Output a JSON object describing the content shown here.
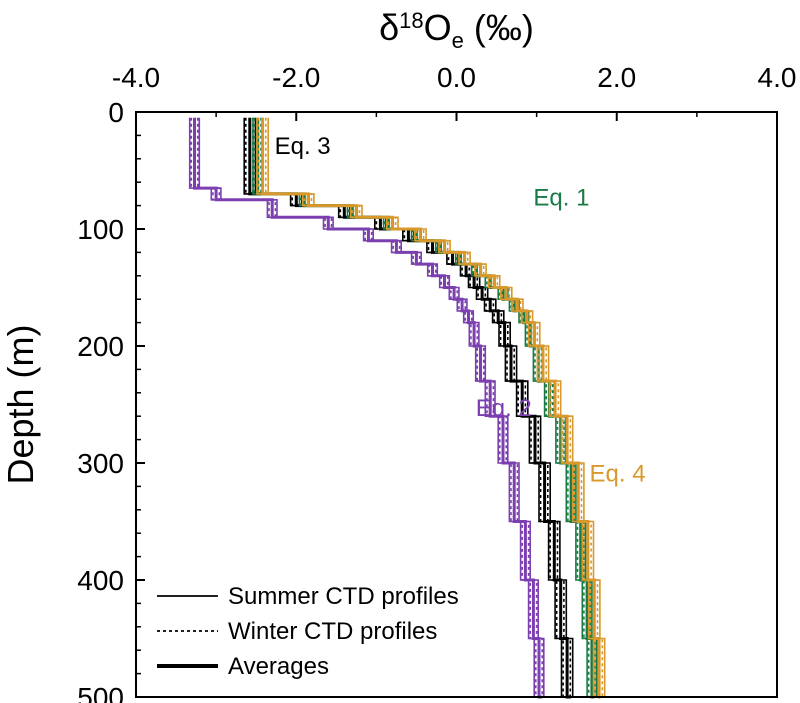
{
  "chart_data": {
    "type": "line",
    "title": "",
    "xlabel": {
      "base": "δ",
      "sup": "18",
      "main": "O",
      "sub": "e",
      "unit": " (‰)"
    },
    "ylabel": "Depth (m)",
    "xlim": [
      -4.0,
      4.0
    ],
    "ylim": [
      0,
      500
    ],
    "y_inverted": true,
    "x_axis_position": "top",
    "x_ticks": [
      -4.0,
      -2.0,
      0.0,
      2.0,
      4.0
    ],
    "x_tick_labels": [
      "-4.0",
      "-2.0",
      "0.0",
      "2.0",
      "4.0"
    ],
    "y_ticks": [
      0,
      100,
      200,
      300,
      400,
      500
    ],
    "y_tick_labels": [
      "0",
      "100",
      "200",
      "300",
      "400",
      "500"
    ],
    "grid": false,
    "colors": {
      "eq1": "#1a7a45",
      "eq2": "#7b3fb0",
      "eq3": "#000000",
      "eq4": "#d9982b"
    },
    "series": [
      {
        "name": "Eq. 3",
        "color_key": "eq3",
        "depth": [
          5,
          55,
          70,
          80,
          90,
          100,
          110,
          120,
          130,
          140,
          150,
          160,
          170,
          180,
          200,
          230,
          260,
          300,
          350,
          400,
          450,
          500
        ],
        "average": [
          -2.58,
          -2.58,
          -2.0,
          -1.4,
          -0.95,
          -0.6,
          -0.3,
          -0.05,
          0.12,
          0.22,
          0.32,
          0.42,
          0.52,
          0.6,
          0.68,
          0.82,
          0.98,
          1.1,
          1.22,
          1.3,
          1.38,
          1.43
        ],
        "summer_offsets": [
          -0.07,
          0.07
        ],
        "winter_offsets": [
          0.04,
          -0.05
        ]
      },
      {
        "name": "Eq. 1",
        "color_key": "eq1",
        "depth": [
          5,
          55,
          70,
          80,
          90,
          100,
          110,
          120,
          130,
          140,
          150,
          160,
          170,
          180,
          200,
          230,
          260,
          300,
          350,
          400,
          450,
          500
        ],
        "average": [
          -2.48,
          -2.48,
          -1.9,
          -1.3,
          -0.85,
          -0.5,
          -0.2,
          0.05,
          0.25,
          0.42,
          0.58,
          0.72,
          0.84,
          0.92,
          1.02,
          1.16,
          1.3,
          1.43,
          1.55,
          1.63,
          1.69,
          1.72
        ],
        "summer_offsets": [
          -0.06,
          0.06
        ],
        "winter_offsets": [
          0.04,
          -0.04
        ]
      },
      {
        "name": "Eq. 2",
        "color_key": "eq2",
        "depth": [
          5,
          55,
          65,
          75,
          90,
          100,
          110,
          120,
          130,
          140,
          150,
          160,
          170,
          180,
          200,
          230,
          260,
          300,
          350,
          400,
          450,
          500
        ],
        "average": [
          -3.27,
          -3.27,
          -3.0,
          -2.3,
          -1.6,
          -1.1,
          -0.75,
          -0.5,
          -0.3,
          -0.15,
          -0.03,
          0.07,
          0.15,
          0.22,
          0.3,
          0.42,
          0.58,
          0.72,
          0.86,
          0.96,
          1.03,
          1.07
        ],
        "summer_offsets": [
          -0.06,
          0.06
        ],
        "winter_offsets": [
          0.04,
          -0.04
        ]
      },
      {
        "name": "Eq. 4",
        "color_key": "eq4",
        "depth": [
          5,
          55,
          70,
          80,
          90,
          100,
          110,
          120,
          130,
          140,
          150,
          160,
          170,
          180,
          200,
          230,
          260,
          300,
          350,
          400,
          450,
          500
        ],
        "average": [
          -2.42,
          -2.42,
          -1.85,
          -1.25,
          -0.8,
          -0.45,
          -0.15,
          0.1,
          0.3,
          0.47,
          0.62,
          0.76,
          0.88,
          0.97,
          1.08,
          1.23,
          1.38,
          1.52,
          1.64,
          1.72,
          1.78,
          1.8
        ],
        "summer_offsets": [
          -0.07,
          0.07
        ],
        "winter_offsets": [
          0.04,
          -0.05
        ]
      }
    ],
    "annotations": [
      {
        "text": "Eq. 3",
        "color_key": "eq3",
        "x": -2.27,
        "y": 36
      },
      {
        "text": "Eq. 1",
        "color_key": "eq1",
        "x": 0.96,
        "y": 80
      },
      {
        "text": "Eq. 2",
        "color_key": "eq2",
        "x": 0.24,
        "y": 260
      },
      {
        "text": "Eq. 4",
        "color_key": "eq4",
        "x": 1.66,
        "y": 316
      }
    ],
    "legend": {
      "position": "bottom-left",
      "entries": [
        {
          "label": "Summer CTD profiles",
          "style": "solid"
        },
        {
          "label": "Winter CTD profiles",
          "style": "dotted"
        },
        {
          "label": "Averages",
          "style": "thick"
        }
      ]
    }
  }
}
